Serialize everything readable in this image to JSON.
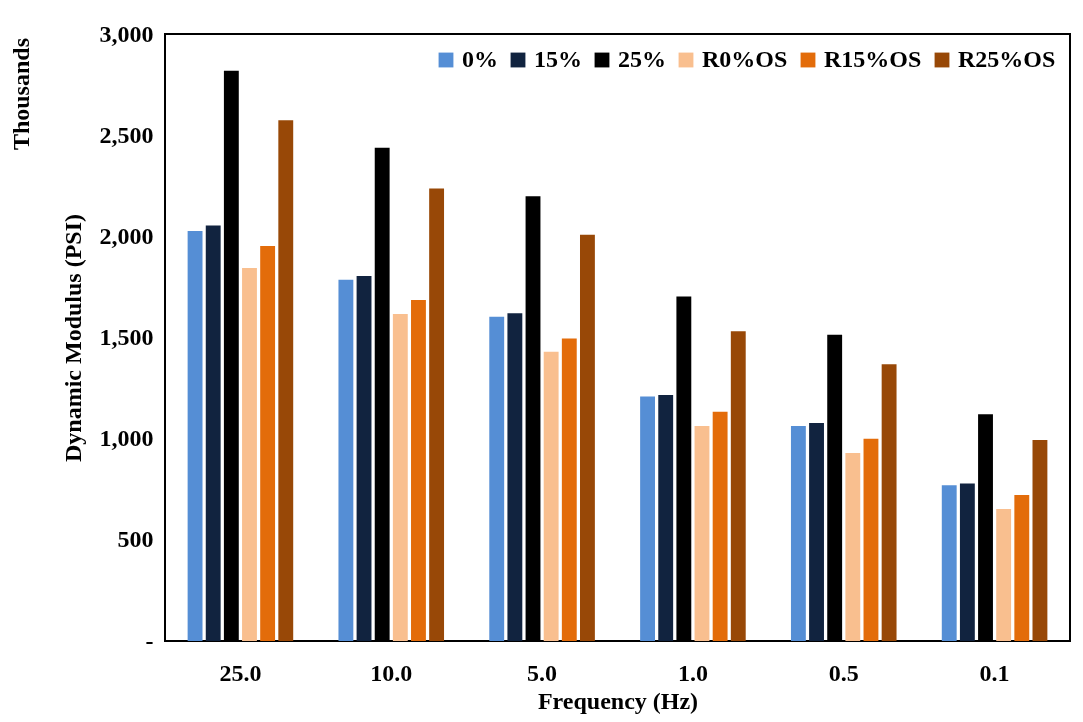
{
  "chart_data": {
    "type": "bar",
    "xlabel": "Frequency (Hz)",
    "ylabel": "Dynamic Modulus (PSI)",
    "annotations": [
      "Thousands"
    ],
    "categories": [
      "25.0",
      "10.0",
      "5.0",
      "1.0",
      "0.5",
      "0.1"
    ],
    "series": [
      {
        "name": "0%",
        "color": "#558ed5",
        "values": [
          2026,
          1786,
          1602,
          1208,
          1063,
          770
        ]
      },
      {
        "name": "15%",
        "color": "#11233f",
        "values": [
          2053,
          1804,
          1620,
          1216,
          1077,
          778
        ]
      },
      {
        "name": "25%",
        "color": "#000000",
        "values": [
          2818,
          2438,
          2198,
          1703,
          1513,
          1121
        ]
      },
      {
        "name": "R0%OS",
        "color": "#f9bf8f",
        "values": [
          1844,
          1616,
          1430,
          1063,
          929,
          653
        ]
      },
      {
        "name": "R15%OS",
        "color": "#e36c0a",
        "values": [
          1952,
          1685,
          1495,
          1133,
          1000,
          721
        ]
      },
      {
        "name": "R25%OS",
        "color": "#984807",
        "values": [
          2574,
          2236,
          2008,
          1531,
          1368,
          994
        ]
      }
    ],
    "ylim": [
      0,
      3000
    ],
    "yticks": [
      {
        "value": 0,
        "label": "-"
      },
      {
        "value": 500,
        "label": "500"
      },
      {
        "value": 1000,
        "label": "1,000"
      },
      {
        "value": 1500,
        "label": "1,500"
      },
      {
        "value": 2000,
        "label": "2,000"
      },
      {
        "value": 2500,
        "label": "2,500"
      },
      {
        "value": 3000,
        "label": "3,000"
      }
    ],
    "grid": false,
    "legend": "top right"
  }
}
